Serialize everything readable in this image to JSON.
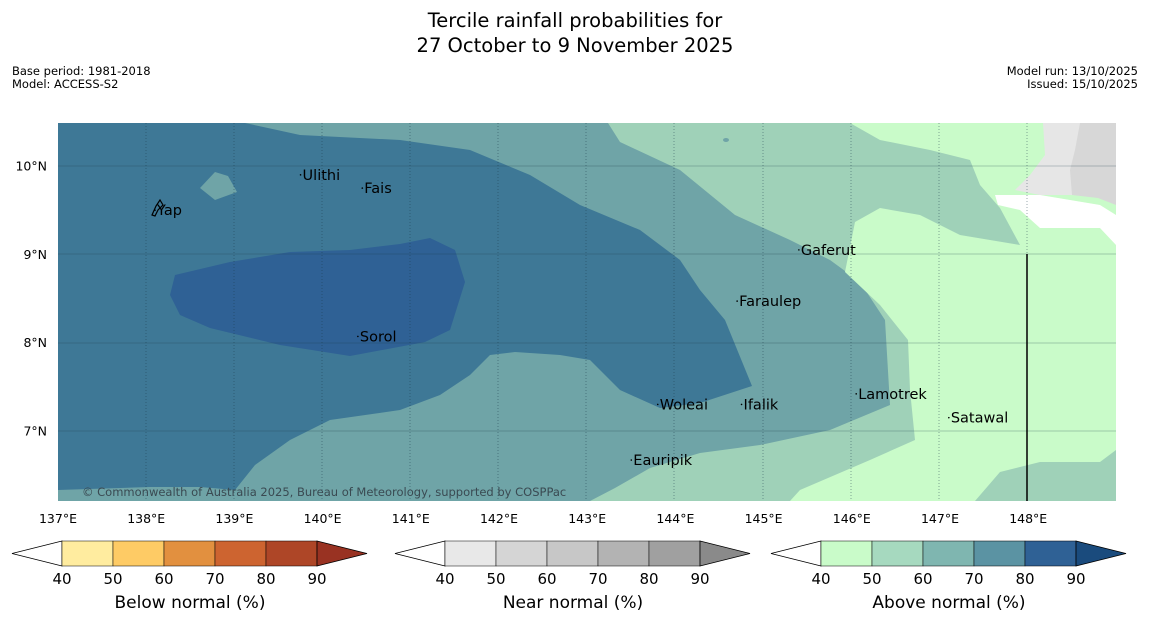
{
  "header": {
    "title_line1": "Tercile rainfall probabilities for",
    "title_line2": "27 October to 9 November 2025",
    "base_period": "Base period: 1981-2018",
    "model": "Model: ACCESS-S2",
    "model_run": "Model run: 13/10/2025",
    "issued": "Issued: 15/10/2025"
  },
  "map": {
    "copyright": "© Commonwealth of Australia 2025, Bureau of Meteorology, supported by COSPPac",
    "lon_ticks": [
      "137°E",
      "138°E",
      "139°E",
      "140°E",
      "141°E",
      "142°E",
      "143°E",
      "144°E",
      "145°E",
      "146°E",
      "147°E",
      "148°E"
    ],
    "lat_ticks": [
      "10°N",
      "9°N",
      "8°N",
      "7°N"
    ],
    "places": [
      {
        "name": "Yap",
        "lon": 138.1,
        "lat": 9.5
      },
      {
        "name": "Ulithi",
        "lon": 139.75,
        "lat": 9.9
      },
      {
        "name": "Fais",
        "lon": 140.45,
        "lat": 9.75
      },
      {
        "name": "Gaferut",
        "lon": 145.4,
        "lat": 9.05
      },
      {
        "name": "Faraulep",
        "lon": 144.7,
        "lat": 8.47
      },
      {
        "name": "Sorol",
        "lon": 140.4,
        "lat": 8.07
      },
      {
        "name": "Lamotrek",
        "lon": 146.05,
        "lat": 7.42
      },
      {
        "name": "Woleai",
        "lon": 143.8,
        "lat": 7.3
      },
      {
        "name": "Ifalik",
        "lon": 144.75,
        "lat": 7.3
      },
      {
        "name": "Satawal",
        "lon": 147.1,
        "lat": 7.15
      },
      {
        "name": "Eauripik",
        "lon": 143.5,
        "lat": 6.67
      }
    ],
    "colors": {
      "ocean_above_80_90": "#2f6195",
      "above_70_80": "#3e7896",
      "above_60_70": "#6fa4a7",
      "above_50_60": "#9fd1b8",
      "above_40_50": "#c9fbc9",
      "near_normal_light": "#e6e6e6",
      "near_normal_mid": "#d7d7d7"
    }
  },
  "legends": [
    {
      "label": "Below normal (%)",
      "ticks": [
        "40",
        "50",
        "60",
        "70",
        "80",
        "90"
      ],
      "colors": [
        "#ffffff",
        "#ffec9f",
        "#fecb65",
        "#e2903f",
        "#cd6430",
        "#ae4627",
        "#993222"
      ]
    },
    {
      "label": "Near normal (%)",
      "ticks": [
        "40",
        "50",
        "60",
        "70",
        "80",
        "90"
      ],
      "colors": [
        "#ffffff",
        "#e8e8e8",
        "#d5d5d5",
        "#c7c7c7",
        "#b3b3b3",
        "#a0a0a0",
        "#8a8a8a"
      ]
    },
    {
      "label": "Above normal (%)",
      "ticks": [
        "40",
        "50",
        "60",
        "70",
        "80",
        "90"
      ],
      "colors": [
        "#ffffff",
        "#c9fbc9",
        "#a6d9bf",
        "#7fb6b0",
        "#5b93a3",
        "#2f6195",
        "#1a4b7d"
      ]
    }
  ]
}
